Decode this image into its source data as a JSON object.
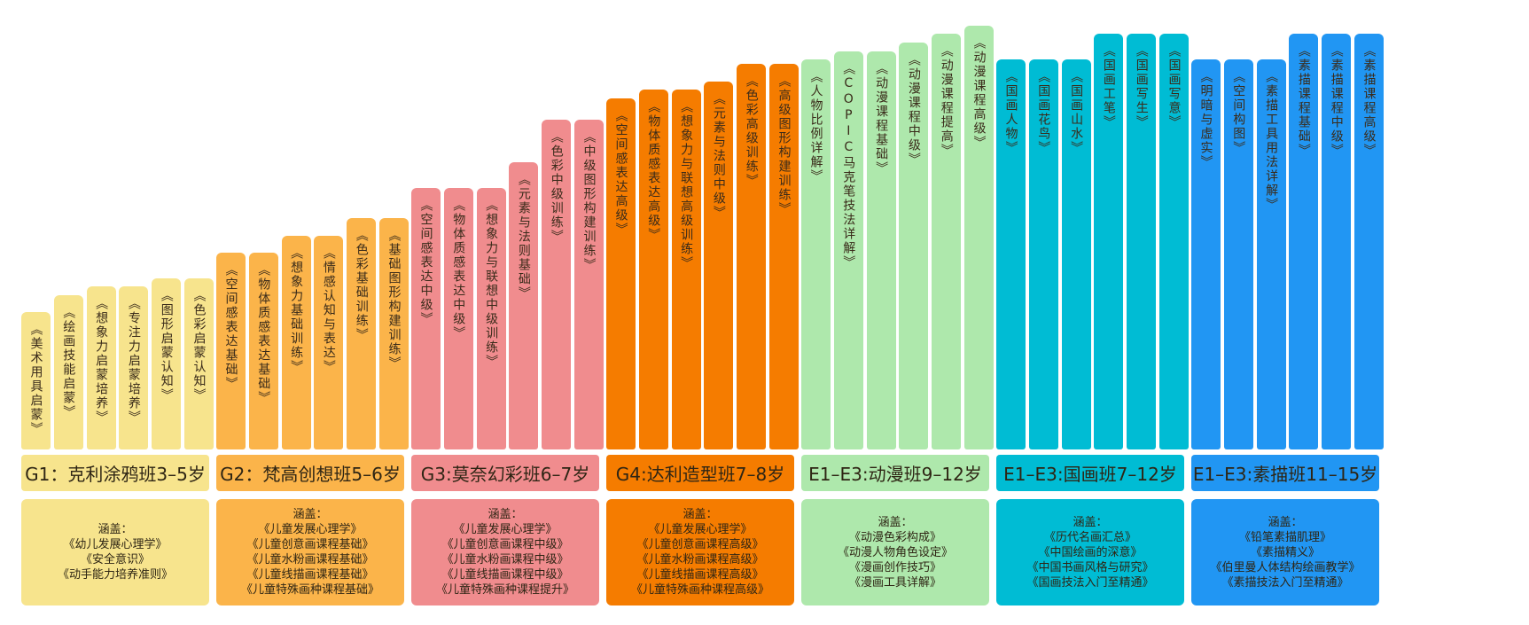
{
  "groups": [
    {
      "title": "G1：克利涂鸦班3–5岁",
      "color": "#f7e48d",
      "courses": [
        "《美术用具启蒙》",
        "《绘画技能启蒙》",
        "《想象力启蒙培养》",
        "《专注力启蒙培养》",
        "《图形启蒙认知》",
        "《色彩启蒙认知》"
      ],
      "levels": [
        0.32,
        0.36,
        0.38,
        0.38,
        0.4,
        0.4
      ],
      "cover_title": "涵盖：",
      "cover": [
        "《幼儿发展心理学》",
        "《安全意识》",
        "《动手能力培养准则》"
      ]
    },
    {
      "title": "G2：梵高创想班5–6岁",
      "color": "#fbb44a",
      "courses": [
        "《空间感表达基础》",
        "《物体质感表达基础》",
        "《想象力基础训练》",
        "《情感认知与表达》",
        "《色彩基础训练》",
        "《基础图形构建训练》"
      ],
      "levels": [
        0.46,
        0.46,
        0.5,
        0.5,
        0.54,
        0.54
      ],
      "cover_title": "涵盖：",
      "cover": [
        "《儿童发展心理学》",
        "《儿童创意画课程基础》",
        "《儿童水粉画课程基础》",
        "《儿童线描画课程基础》",
        "《儿童特殊画种课程基础》"
      ]
    },
    {
      "title": "G3:莫奈幻彩班6–7岁",
      "color": "#f08c8e",
      "courses": [
        "《空间感表达中级》",
        "《物体质感表达中级》",
        "《想象力与联想中级训练》",
        "《元素与法则基础》",
        "《色彩中级训练》",
        "《中级图形构建训练》"
      ],
      "levels": [
        0.61,
        0.61,
        0.61,
        0.67,
        0.77,
        0.77
      ],
      "cover_title": "涵盖：",
      "cover": [
        "《儿童发展心理学》",
        "《儿童创意画课程中级》",
        "《儿童水粉画课程中级》",
        "《儿童线描画课程中级》",
        "《儿童特殊画种课程提升》"
      ]
    },
    {
      "title": "G4:达利造型班7–8岁",
      "color": "#f57c00",
      "courses": [
        "《空间感表达高级》",
        "《物体质感表达高级》",
        "《想象力与联想高级训练》",
        "《元素与法则中级》",
        "《色彩高级训练》",
        "《高级图形构建训练》"
      ],
      "levels": [
        0.82,
        0.84,
        0.84,
        0.86,
        0.9,
        0.9
      ],
      "cover_title": "涵盖：",
      "cover": [
        "《儿童发展心理学》",
        "《儿童创意画课程高级》",
        "《儿童水粉画课程高级》",
        "《儿童线描画课程高级》",
        "《儿童特殊画种课程高级》"
      ]
    },
    {
      "title": "E1–E3:动漫班9–12岁",
      "color": "#aee8ac",
      "courses": [
        "《人物比例详解》",
        "《COPIC马克笔技法详解》",
        "《动漫课程基础》",
        "《动漫课程中级》",
        "《动漫课程提高》",
        "《动漫课程高级》"
      ],
      "levels": [
        0.91,
        0.93,
        0.93,
        0.95,
        0.97,
        0.99
      ],
      "cover_title": "涵盖：",
      "cover": [
        "《动漫色彩构成》",
        "《动漫人物角色设定》",
        "《漫画创作技巧》",
        "《漫画工具详解》"
      ]
    },
    {
      "title": "E1–E3:国画班7–12岁",
      "color": "#00bcd4",
      "courses": [
        "《国画人物》",
        "《国画花鸟》",
        "《国画山水》",
        "《国画工笔》",
        "《国画写生》",
        "《国画写意》"
      ],
      "levels": [
        0.91,
        0.91,
        0.91,
        0.97,
        0.97,
        0.97
      ],
      "cover_title": "涵盖：",
      "cover": [
        "《历代名画汇总》",
        "《中国绘画的深意》",
        "《中国书画风格与研究》",
        "《国画技法入门至精通》"
      ]
    },
    {
      "title": "E1–E3:素描班11–15岁",
      "color": "#2196f3",
      "courses": [
        "《明暗与虚实》",
        "《空间构图》",
        "《素描工具用法详解》",
        "《素描课程基础》",
        "《素描课程中级》",
        "《素描课程高级》"
      ],
      "levels": [
        0.91,
        0.91,
        0.91,
        0.97,
        0.97,
        0.97
      ],
      "cover_title": "涵盖：",
      "cover": [
        "《铅笔素描肌理》",
        "《素描精义》",
        "《伯里曼人体结构绘画教学》",
        "《素描技法入门至精通》"
      ]
    }
  ]
}
